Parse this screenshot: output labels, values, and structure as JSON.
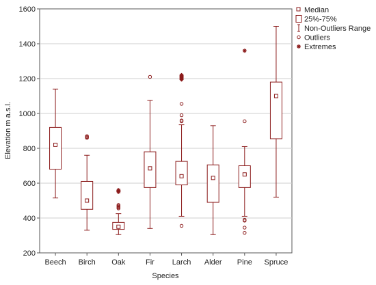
{
  "chart_data": {
    "type": "box",
    "title": "",
    "xlabel": "Species",
    "ylabel": "Elevation  m a.s.l.",
    "ylim": [
      200,
      1600
    ],
    "yticks": [
      200,
      400,
      600,
      800,
      1000,
      1200,
      1400,
      1600
    ],
    "grid": true,
    "legend_position": "top-right",
    "color": "#8b1a1a",
    "categories": [
      "Beech",
      "Birch",
      "Oak",
      "Fir",
      "Larch",
      "Alder",
      "Pine",
      "Spruce"
    ],
    "boxes": [
      {
        "category": "Beech",
        "median": 820,
        "q1": 680,
        "q3": 920,
        "whisker_low": 515,
        "whisker_high": 1140,
        "outliers": [],
        "extremes": []
      },
      {
        "category": "Birch",
        "median": 500,
        "q1": 450,
        "q3": 610,
        "whisker_low": 330,
        "whisker_high": 760,
        "outliers": [
          860,
          865,
          870
        ],
        "extremes": []
      },
      {
        "category": "Oak",
        "median": 350,
        "q1": 335,
        "q3": 375,
        "whisker_low": 305,
        "whisker_high": 425,
        "outliers": [
          455,
          460,
          465,
          470,
          475
        ],
        "extremes": [
          550,
          555,
          560
        ]
      },
      {
        "category": "Fir",
        "median": 685,
        "q1": 575,
        "q3": 780,
        "whisker_low": 340,
        "whisker_high": 1075,
        "outliers": [
          1210
        ],
        "extremes": []
      },
      {
        "category": "Larch",
        "median": 640,
        "q1": 590,
        "q3": 725,
        "whisker_low": 410,
        "whisker_high": 935,
        "outliers": [
          355,
          955,
          960,
          990,
          1055
        ],
        "extremes": [
          1195,
          1200,
          1205,
          1210,
          1215,
          1220
        ]
      },
      {
        "category": "Alder",
        "median": 630,
        "q1": 490,
        "q3": 705,
        "whisker_low": 305,
        "whisker_high": 930,
        "outliers": [],
        "extremes": []
      },
      {
        "category": "Pine",
        "median": 650,
        "q1": 575,
        "q3": 700,
        "whisker_low": 410,
        "whisker_high": 810,
        "outliers": [
          315,
          345,
          385,
          390,
          955
        ],
        "extremes": [
          1360
        ]
      },
      {
        "category": "Spruce",
        "median": 1100,
        "q1": 855,
        "q3": 1180,
        "whisker_low": 520,
        "whisker_high": 1500,
        "outliers": [],
        "extremes": []
      }
    ],
    "legend": [
      {
        "symbol": "small-square",
        "label": "Median"
      },
      {
        "symbol": "box",
        "label": "25%-75%"
      },
      {
        "symbol": "whisker",
        "label": "Non-Outliers Range"
      },
      {
        "symbol": "circle",
        "label": "Outliers"
      },
      {
        "symbol": "star",
        "label": "Extremes"
      }
    ]
  }
}
